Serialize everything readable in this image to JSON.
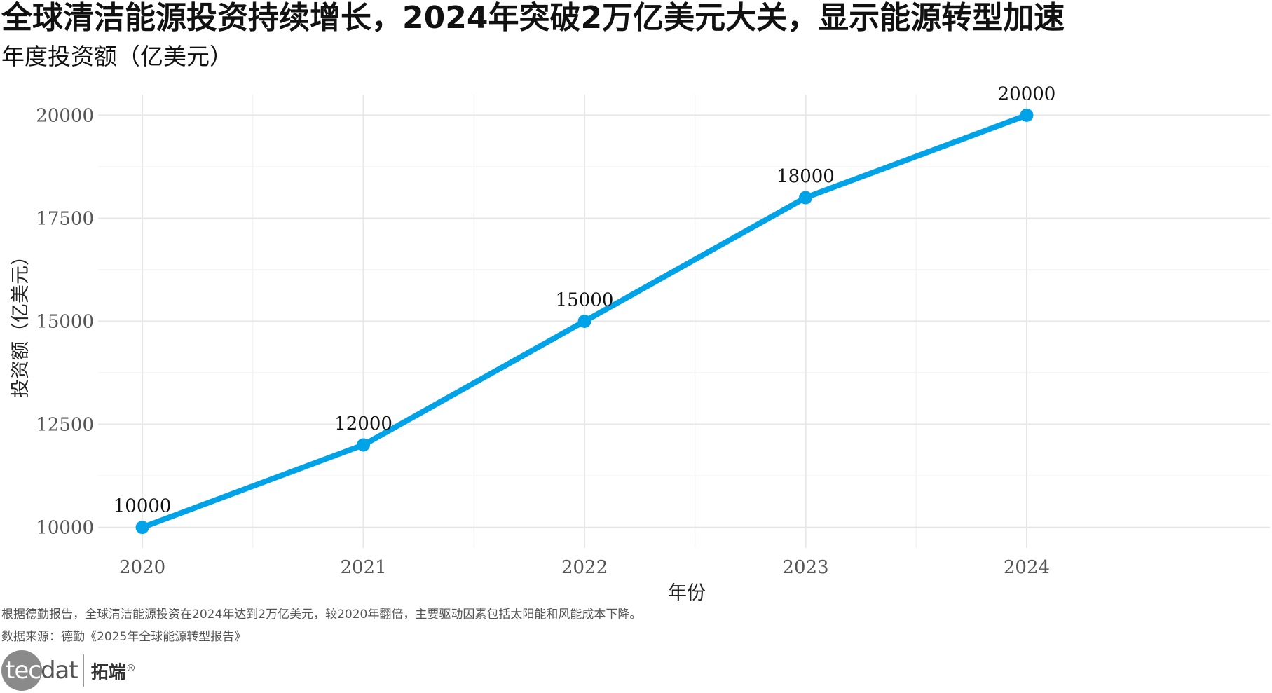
{
  "page": {
    "title": "全球清洁能源投资持续增长，2024年突破2万亿美元大关，显示能源转型加速",
    "subtitle": "年度投资额（亿美元）",
    "caption": "根据德勤报告，全球清洁能源投资在2024年达到2万亿美元，较2020年翻倍，主要驱动因素包括太阳能和风能成本下降。",
    "source": "数据来源：德勤《2025年全球能源转型报告》",
    "logo": {
      "en_part1": "tec",
      "en_part2": "dat",
      "cn": "拓端",
      "mark": "®"
    }
  },
  "chart_data": {
    "type": "line",
    "x": [
      2020,
      2021,
      2022,
      2023,
      2024
    ],
    "series": [
      {
        "values": [
          10000,
          12000,
          15000,
          18000,
          20000
        ],
        "color": "#00A2E8"
      }
    ],
    "data_labels": [
      "10000",
      "12000",
      "15000",
      "18000",
      "20000"
    ],
    "xlabel": "年份",
    "ylabel": "投资额（亿美元）",
    "ylim": [
      9500,
      20500
    ],
    "xlim": [
      2019.8,
      2025.1
    ],
    "y_ticks": [
      10000,
      12500,
      15000,
      17500,
      20000
    ],
    "x_ticks": [
      2020,
      2021,
      2022,
      2023,
      2024
    ],
    "grid": true,
    "legend": "none"
  }
}
